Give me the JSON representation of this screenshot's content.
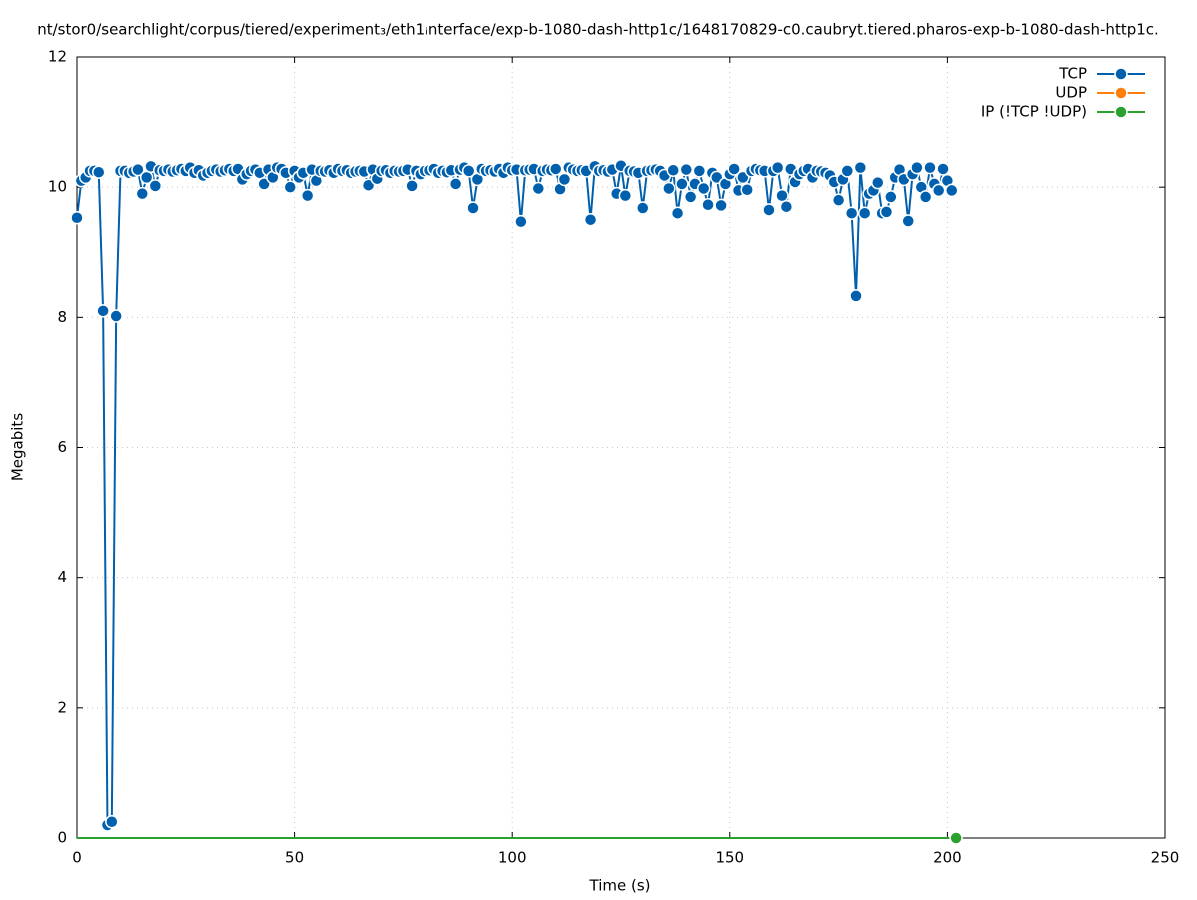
{
  "chart_data": {
    "type": "line",
    "title": "nt/stor0/searchlight/corpus/tiered/experiment₃/eth1ᵢnterface/exp-b-1080-dash-http1c/1648170829-c0.caubryt.tiered.pharos-exp-b-1080-dash-http1c.",
    "xlabel": "Time (s)",
    "ylabel": "Megabits",
    "xlim": [
      0,
      250
    ],
    "xticks": [
      0,
      50,
      100,
      150,
      200,
      250
    ],
    "ylim": [
      0,
      12
    ],
    "yticks": [
      0,
      2,
      4,
      6,
      8,
      10,
      12
    ],
    "grid": true,
    "legend": "top-right",
    "series": [
      {
        "name": "TCP",
        "color": "#0060ad",
        "x": [
          0,
          1,
          2,
          3,
          4,
          5,
          6,
          7,
          8,
          9,
          10,
          11,
          12,
          13,
          14,
          15,
          16,
          17,
          18,
          19,
          20,
          21,
          22,
          23,
          24,
          25,
          26,
          27,
          28,
          29,
          30,
          31,
          32,
          33,
          34,
          35,
          36,
          37,
          38,
          39,
          40,
          41,
          42,
          43,
          44,
          45,
          46,
          47,
          48,
          49,
          50,
          51,
          52,
          53,
          54,
          55,
          56,
          57,
          58,
          59,
          60,
          61,
          62,
          63,
          64,
          65,
          66,
          67,
          68,
          69,
          70,
          71,
          72,
          73,
          74,
          75,
          76,
          77,
          78,
          79,
          80,
          81,
          82,
          83,
          84,
          85,
          86,
          87,
          88,
          89,
          90,
          91,
          92,
          93,
          94,
          95,
          96,
          97,
          98,
          99,
          100,
          101,
          102,
          103,
          104,
          105,
          106,
          107,
          108,
          109,
          110,
          111,
          112,
          113,
          114,
          115,
          116,
          117,
          118,
          119,
          120,
          121,
          122,
          123,
          124,
          125,
          126,
          127,
          128,
          129,
          130,
          131,
          132,
          133,
          134,
          135,
          136,
          137,
          138,
          139,
          140,
          141,
          142,
          143,
          144,
          145,
          146,
          147,
          148,
          149,
          150,
          151,
          152,
          153,
          154,
          155,
          156,
          157,
          158,
          159,
          160,
          161,
          162,
          163,
          164,
          165,
          166,
          167,
          168,
          169,
          170,
          171,
          172,
          173,
          174,
          175,
          176,
          177,
          178,
          179,
          180,
          181,
          182,
          183,
          184,
          185,
          186,
          187,
          188,
          189,
          190,
          191,
          192,
          193,
          194,
          195,
          196,
          197,
          198,
          199,
          200,
          201
        ],
        "values": [
          9.53,
          10.1,
          10.15,
          10.25,
          10.25,
          10.23,
          8.1,
          0.2,
          0.25,
          8.02,
          10.25,
          10.25,
          10.22,
          10.24,
          10.27,
          9.9,
          10.15,
          10.32,
          10.02,
          10.26,
          10.25,
          10.27,
          10.24,
          10.26,
          10.28,
          10.25,
          10.3,
          10.22,
          10.26,
          10.18,
          10.22,
          10.25,
          10.27,
          10.24,
          10.26,
          10.28,
          10.25,
          10.28,
          10.12,
          10.2,
          10.25,
          10.27,
          10.22,
          10.05,
          10.27,
          10.15,
          10.3,
          10.28,
          10.22,
          10.0,
          10.25,
          10.15,
          10.22,
          9.87,
          10.27,
          10.1,
          10.25,
          10.24,
          10.26,
          10.22,
          10.28,
          10.25,
          10.26,
          10.22,
          10.24,
          10.25,
          10.24,
          10.03,
          10.27,
          10.13,
          10.25,
          10.26,
          10.22,
          10.25,
          10.24,
          10.25,
          10.27,
          10.02,
          10.25,
          10.2,
          10.25,
          10.26,
          10.28,
          10.22,
          10.25,
          10.23,
          10.26,
          10.05,
          10.27,
          10.3,
          10.25,
          9.68,
          10.12,
          10.28,
          10.25,
          10.26,
          10.24,
          10.28,
          10.22,
          10.3,
          10.26,
          10.27,
          9.47,
          10.26,
          10.27,
          10.28,
          9.98,
          10.25,
          10.27,
          10.26,
          10.28,
          9.97,
          10.12,
          10.3,
          10.27,
          10.25,
          10.26,
          10.25,
          9.5,
          10.32,
          10.25,
          10.26,
          10.24,
          10.27,
          9.9,
          10.33,
          9.87,
          10.25,
          10.24,
          10.22,
          9.68,
          10.25,
          10.26,
          10.27,
          10.25,
          10.18,
          9.98,
          10.26,
          9.6,
          10.05,
          10.27,
          9.85,
          10.05,
          10.25,
          9.98,
          9.73,
          10.22,
          10.15,
          9.72,
          10.05,
          10.2,
          10.28,
          9.95,
          10.15,
          9.96,
          10.25,
          10.28,
          10.26,
          10.25,
          9.65,
          10.25,
          10.3,
          9.87,
          9.7,
          10.28,
          10.08,
          10.2,
          10.25,
          10.28,
          10.15,
          10.25,
          10.24,
          10.22,
          10.18,
          10.08,
          9.8,
          10.12,
          10.25,
          9.6,
          8.33,
          10.3,
          9.6,
          9.9,
          9.95,
          10.07,
          9.6,
          9.62,
          9.85,
          10.15,
          10.27,
          10.12,
          9.48,
          10.2,
          10.3,
          10.0,
          9.85,
          10.3,
          10.05,
          9.95,
          10.28,
          10.1,
          9.95
        ]
      },
      {
        "name": "UDP",
        "color": "#ff7f0e",
        "x": [],
        "values": []
      },
      {
        "name": "IP (!TCP  !UDP)",
        "color": "#2ca02c",
        "x": [
          0,
          202
        ],
        "values": [
          0,
          0
        ]
      }
    ]
  }
}
